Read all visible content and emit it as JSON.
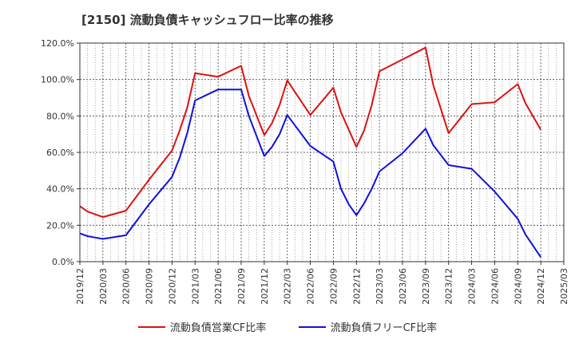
{
  "title": "[2150]  流動負債キャッシュフロー比率の推移",
  "chart_data": {
    "type": "line",
    "title": "[2150]  流動負債キャッシュフロー比率の推移",
    "xlabel": "",
    "ylabel": "",
    "ylim": [
      0,
      120
    ],
    "yticks": [
      "0.0%",
      "20.0%",
      "40.0%",
      "60.0%",
      "80.0%",
      "100.0%",
      "120.0%"
    ],
    "xticks": [
      "2019/12",
      "2020/03",
      "2020/06",
      "2020/09",
      "2020/12",
      "2021/03",
      "2021/06",
      "2021/09",
      "2021/12",
      "2022/03",
      "2022/06",
      "2022/09",
      "2022/12",
      "2023/03",
      "2023/06",
      "2023/09",
      "2023/12",
      "2024/03",
      "2024/06",
      "2024/09",
      "2024/12",
      "2025/03"
    ],
    "grid": true,
    "legend_position": "bottom",
    "series": [
      {
        "name": "流動負債営業CF比率",
        "color": "#dd1111",
        "points": [
          [
            "2019/12",
            30.5
          ],
          [
            "2020/01",
            27.5
          ],
          [
            "2020/03",
            24.5
          ],
          [
            "2020/06",
            28.0
          ],
          [
            "2020/09",
            45.0
          ],
          [
            "2020/12",
            61.0
          ],
          [
            "2021/01",
            72.0
          ],
          [
            "2021/02",
            85.0
          ],
          [
            "2021/03",
            103.5
          ],
          [
            "2021/06",
            101.5
          ],
          [
            "2021/09",
            107.5
          ],
          [
            "2021/10",
            91.0
          ],
          [
            "2021/12",
            69.5
          ],
          [
            "2022/01",
            76.0
          ],
          [
            "2022/02",
            86.0
          ],
          [
            "2022/03",
            99.5
          ],
          [
            "2022/06",
            80.5
          ],
          [
            "2022/09",
            95.5
          ],
          [
            "2022/10",
            82.0
          ],
          [
            "2022/12",
            63.0
          ],
          [
            "2023/01",
            72.0
          ],
          [
            "2023/02",
            86.0
          ],
          [
            "2023/03",
            104.5
          ],
          [
            "2023/06",
            111.0
          ],
          [
            "2023/09",
            117.5
          ],
          [
            "2023/10",
            97.0
          ],
          [
            "2023/12",
            70.5
          ],
          [
            "2024/03",
            86.5
          ],
          [
            "2024/06",
            87.5
          ],
          [
            "2024/09",
            97.5
          ],
          [
            "2024/10",
            87.0
          ],
          [
            "2024/12",
            72.5
          ]
        ]
      },
      {
        "name": "流動負債フリーCF比率",
        "color": "#1111dd",
        "points": [
          [
            "2019/12",
            15.5
          ],
          [
            "2020/01",
            14.0
          ],
          [
            "2020/03",
            12.5
          ],
          [
            "2020/06",
            14.5
          ],
          [
            "2020/09",
            31.5
          ],
          [
            "2020/12",
            46.5
          ],
          [
            "2021/01",
            57.0
          ],
          [
            "2021/02",
            71.0
          ],
          [
            "2021/03",
            88.5
          ],
          [
            "2021/06",
            94.5
          ],
          [
            "2021/09",
            94.5
          ],
          [
            "2021/10",
            80.0
          ],
          [
            "2021/12",
            58.0
          ],
          [
            "2022/01",
            63.0
          ],
          [
            "2022/02",
            70.0
          ],
          [
            "2022/03",
            80.5
          ],
          [
            "2022/06",
            63.5
          ],
          [
            "2022/09",
            55.0
          ],
          [
            "2022/10",
            40.0
          ],
          [
            "2022/11",
            31.5
          ],
          [
            "2022/12",
            25.5
          ],
          [
            "2023/01",
            32.0
          ],
          [
            "2023/02",
            40.0
          ],
          [
            "2023/03",
            49.5
          ],
          [
            "2023/06",
            59.5
          ],
          [
            "2023/09",
            73.0
          ],
          [
            "2023/10",
            64.0
          ],
          [
            "2023/12",
            53.0
          ],
          [
            "2024/03",
            51.0
          ],
          [
            "2024/06",
            38.5
          ],
          [
            "2024/09",
            23.5
          ],
          [
            "2024/10",
            15.0
          ],
          [
            "2024/12",
            2.5
          ]
        ]
      }
    ]
  }
}
